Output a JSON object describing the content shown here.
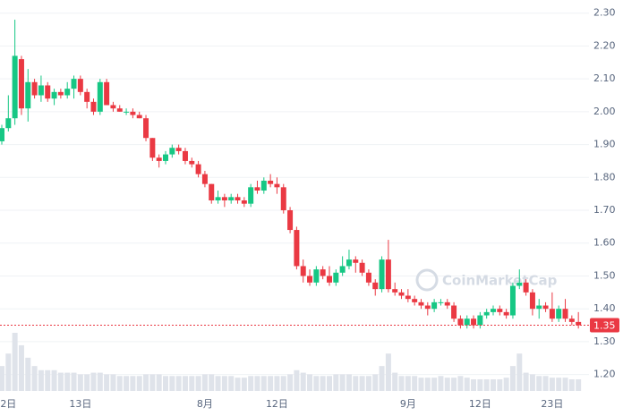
{
  "chart_data": {
    "type": "candlestick",
    "watermark": "CoinMarketCap",
    "categories": [
      null,
      "2日",
      null,
      null,
      null,
      null,
      null,
      null,
      null,
      null,
      null,
      null,
      "13日",
      null,
      null,
      null,
      null,
      null,
      null,
      null,
      null,
      null,
      null,
      null,
      null,
      null,
      null,
      null,
      null,
      null,
      null,
      "8月",
      null,
      null,
      null,
      null,
      null,
      null,
      null,
      null,
      null,
      null,
      "12日",
      null,
      null,
      null,
      null,
      null,
      null,
      null,
      null,
      null,
      null,
      null,
      null,
      null,
      null,
      null,
      null,
      null,
      null,
      null,
      "9月",
      null,
      null,
      null,
      null,
      null,
      null,
      null,
      null,
      null,
      null,
      "12日",
      null,
      null,
      null,
      null,
      null,
      null,
      null,
      null,
      null,
      null,
      "23日",
      null,
      null,
      null,
      null
    ],
    "open": [
      1.91,
      1.95,
      1.98,
      2.16,
      2.01,
      2.09,
      2.05,
      2.08,
      2.04,
      2.06,
      2.05,
      2.07,
      2.1,
      2.06,
      2.03,
      2.0,
      2.09,
      2.02,
      2.01,
      2.0,
      2.0,
      1.99,
      1.98,
      1.92,
      1.86,
      1.85,
      1.87,
      1.89,
      1.88,
      1.85,
      1.84,
      1.81,
      1.78,
      1.73,
      1.74,
      1.73,
      1.74,
      1.73,
      1.72,
      1.77,
      1.76,
      1.79,
      1.78,
      1.77,
      1.7,
      1.64,
      1.53,
      1.5,
      1.48,
      1.52,
      1.5,
      1.48,
      1.51,
      1.53,
      1.55,
      1.54,
      1.51,
      1.48,
      1.46,
      1.55,
      1.46,
      1.45,
      1.44,
      1.43,
      1.42,
      1.41,
      1.4,
      1.42,
      1.42,
      1.41,
      1.37,
      1.35,
      1.37,
      1.35,
      1.38,
      1.39,
      1.4,
      1.39,
      1.38,
      1.47,
      1.48,
      1.45,
      1.4,
      1.41,
      1.4,
      1.37,
      1.4,
      1.37,
      1.36
    ],
    "high": [
      1.96,
      2.05,
      2.28,
      2.17,
      2.13,
      2.1,
      2.11,
      2.09,
      2.07,
      2.07,
      2.09,
      2.11,
      2.11,
      2.07,
      2.04,
      2.1,
      2.1,
      2.03,
      2.02,
      2.01,
      2.01,
      2.0,
      1.99,
      1.92,
      1.87,
      1.88,
      1.9,
      1.9,
      1.89,
      1.86,
      1.85,
      1.82,
      1.78,
      1.76,
      1.75,
      1.75,
      1.75,
      1.74,
      1.78,
      1.79,
      1.8,
      1.81,
      1.8,
      1.78,
      1.71,
      1.65,
      1.55,
      1.52,
      1.53,
      1.53,
      1.53,
      1.52,
      1.56,
      1.58,
      1.56,
      1.55,
      1.52,
      1.49,
      1.56,
      1.61,
      1.48,
      1.46,
      1.46,
      1.44,
      1.43,
      1.42,
      1.43,
      1.43,
      1.43,
      1.42,
      1.38,
      1.38,
      1.38,
      1.39,
      1.4,
      1.41,
      1.41,
      1.4,
      1.48,
      1.52,
      1.49,
      1.46,
      1.43,
      1.42,
      1.45,
      1.41,
      1.43,
      1.38,
      1.39
    ],
    "low": [
      1.9,
      1.94,
      1.96,
      1.99,
      1.97,
      2.04,
      2.03,
      2.03,
      2.02,
      2.04,
      2.04,
      2.04,
      2.05,
      2.01,
      1.99,
      1.99,
      2.02,
      2.0,
      2.0,
      1.99,
      1.98,
      1.98,
      1.91,
      1.85,
      1.83,
      1.84,
      1.86,
      1.87,
      1.84,
      1.83,
      1.8,
      1.77,
      1.72,
      1.72,
      1.71,
      1.72,
      1.72,
      1.71,
      1.71,
      1.75,
      1.75,
      1.77,
      1.75,
      1.69,
      1.63,
      1.52,
      1.48,
      1.47,
      1.47,
      1.49,
      1.47,
      1.47,
      1.5,
      1.52,
      1.51,
      1.5,
      1.47,
      1.44,
      1.45,
      1.45,
      1.44,
      1.43,
      1.42,
      1.41,
      1.4,
      1.38,
      1.39,
      1.41,
      1.4,
      1.36,
      1.34,
      1.34,
      1.34,
      1.34,
      1.37,
      1.38,
      1.38,
      1.37,
      1.37,
      1.46,
      1.44,
      1.38,
      1.37,
      1.39,
      1.36,
      1.36,
      1.36,
      1.35,
      1.34
    ],
    "close": [
      1.95,
      1.98,
      2.17,
      2.01,
      2.09,
      2.05,
      2.08,
      2.04,
      2.06,
      2.05,
      2.07,
      2.1,
      2.06,
      2.03,
      2.0,
      2.09,
      2.02,
      2.01,
      2.0,
      2.0,
      1.99,
      1.98,
      1.92,
      1.86,
      1.85,
      1.87,
      1.89,
      1.88,
      1.85,
      1.84,
      1.81,
      1.78,
      1.73,
      1.74,
      1.73,
      1.74,
      1.73,
      1.72,
      1.77,
      1.76,
      1.79,
      1.78,
      1.77,
      1.7,
      1.64,
      1.53,
      1.5,
      1.48,
      1.52,
      1.5,
      1.48,
      1.51,
      1.53,
      1.55,
      1.54,
      1.51,
      1.48,
      1.46,
      1.55,
      1.46,
      1.45,
      1.44,
      1.43,
      1.42,
      1.41,
      1.4,
      1.42,
      1.42,
      1.41,
      1.37,
      1.35,
      1.37,
      1.35,
      1.38,
      1.39,
      1.4,
      1.39,
      1.38,
      1.47,
      1.48,
      1.45,
      1.4,
      1.41,
      1.4,
      1.37,
      1.4,
      1.37,
      1.36,
      1.35
    ],
    "volume": [
      30,
      45,
      70,
      55,
      40,
      30,
      25,
      25,
      25,
      22,
      22,
      22,
      20,
      20,
      22,
      22,
      20,
      20,
      18,
      18,
      18,
      18,
      20,
      20,
      20,
      18,
      18,
      18,
      18,
      18,
      18,
      20,
      20,
      18,
      18,
      18,
      16,
      16,
      18,
      18,
      18,
      18,
      18,
      18,
      20,
      25,
      22,
      20,
      18,
      18,
      18,
      20,
      20,
      20,
      18,
      18,
      18,
      20,
      30,
      45,
      22,
      18,
      18,
      18,
      16,
      16,
      16,
      18,
      16,
      16,
      18,
      16,
      14,
      14,
      14,
      14,
      14,
      16,
      30,
      45,
      22,
      20,
      18,
      18,
      16,
      16,
      16,
      14,
      14
    ],
    "up_color": "#16c784",
    "down_color": "#ea3943",
    "volume_color": "#dfe3ea",
    "last_price": {
      "value": 1.35,
      "label": "1.35"
    },
    "ylim": [
      1.15,
      2.34
    ],
    "yticks": [
      {
        "value": 1.2,
        "label": "1.20"
      },
      {
        "value": 1.3,
        "label": "1.30"
      },
      {
        "value": 1.4,
        "label": "1.40"
      },
      {
        "value": 1.5,
        "label": "1.50"
      },
      {
        "value": 1.6,
        "label": "1.60"
      },
      {
        "value": 1.7,
        "label": "1.70"
      },
      {
        "value": 1.8,
        "label": "1.80"
      },
      {
        "value": 1.9,
        "label": "1.90"
      },
      {
        "value": 2.0,
        "label": "2.00"
      },
      {
        "value": 2.1,
        "label": "2.10"
      },
      {
        "value": 2.2,
        "label": "2.20"
      },
      {
        "value": 2.3,
        "label": "2.30"
      }
    ],
    "grid": true
  }
}
